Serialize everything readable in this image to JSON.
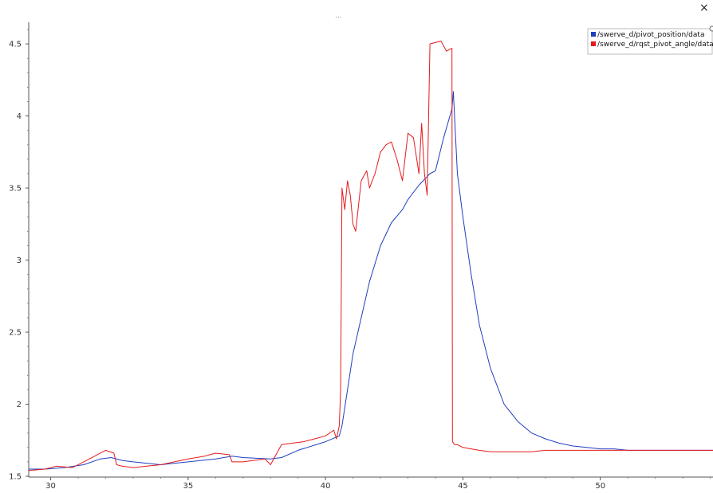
{
  "window": {
    "dots_label": "...",
    "close_glyph": "×"
  },
  "chart_data": {
    "type": "line",
    "title": "",
    "xlabel": "",
    "ylabel": "",
    "xlim": [
      29.2,
      54.1
    ],
    "ylim": [
      1.5,
      4.65
    ],
    "x_ticks": [
      30,
      35,
      40,
      45,
      50
    ],
    "y_ticks": [
      1.5,
      2,
      2.5,
      3,
      3.5,
      4,
      4.5
    ],
    "legend_position": "top-right",
    "grid": false,
    "series": [
      {
        "name": "/swerve_d/pivot_position/data",
        "color": "#1f3fbf",
        "x": [
          29.2,
          29.8,
          30.5,
          31.2,
          31.8,
          32.2,
          32.6,
          33.0,
          34.0,
          35.0,
          36.0,
          36.6,
          37.0,
          38.0,
          38.4,
          39.0,
          40.0,
          40.5,
          40.6,
          40.8,
          41.0,
          41.3,
          41.6,
          42.0,
          42.4,
          42.8,
          43.0,
          43.4,
          43.8,
          44.0,
          44.3,
          44.6,
          44.65,
          44.8,
          45.0,
          45.3,
          45.6,
          46.0,
          46.5,
          47.0,
          47.5,
          48.0,
          48.5,
          49.0,
          49.5,
          50.0,
          50.5,
          51.0,
          52.0,
          53.0,
          54.1
        ],
        "y": [
          1.55,
          1.55,
          1.56,
          1.58,
          1.62,
          1.63,
          1.61,
          1.6,
          1.58,
          1.6,
          1.62,
          1.64,
          1.63,
          1.62,
          1.63,
          1.68,
          1.74,
          1.78,
          1.85,
          2.1,
          2.35,
          2.6,
          2.85,
          3.1,
          3.26,
          3.35,
          3.42,
          3.52,
          3.6,
          3.62,
          3.85,
          4.05,
          4.17,
          3.6,
          3.3,
          2.9,
          2.55,
          2.25,
          2.0,
          1.88,
          1.8,
          1.76,
          1.73,
          1.71,
          1.7,
          1.69,
          1.69,
          1.68,
          1.68,
          1.68,
          1.68
        ]
      },
      {
        "name": "/swerve_d/rqst_pivot_angle/data",
        "color": "#e41a1c",
        "x": [
          29.2,
          29.8,
          30.2,
          30.8,
          31.2,
          31.6,
          32.0,
          32.3,
          32.4,
          32.6,
          33.0,
          33.5,
          34.0,
          34.5,
          35.0,
          35.6,
          36.0,
          36.5,
          36.6,
          37.0,
          37.8,
          38.0,
          38.2,
          38.4,
          38.8,
          39.2,
          39.6,
          40.0,
          40.3,
          40.4,
          40.5,
          40.55,
          40.6,
          40.7,
          40.8,
          40.9,
          41.0,
          41.1,
          41.3,
          41.5,
          41.6,
          41.8,
          42.0,
          42.2,
          42.4,
          42.6,
          42.8,
          43.0,
          43.2,
          43.4,
          43.5,
          43.6,
          43.7,
          43.8,
          44.2,
          44.4,
          44.6,
          44.62,
          44.7,
          44.8,
          45.0,
          45.3,
          45.6,
          46.0,
          46.5,
          47.0,
          47.5,
          48.0,
          48.5,
          49.0,
          50.0,
          51.0,
          52.0,
          53.0,
          54.1
        ],
        "y": [
          1.54,
          1.55,
          1.57,
          1.56,
          1.6,
          1.64,
          1.68,
          1.66,
          1.58,
          1.57,
          1.56,
          1.57,
          1.58,
          1.6,
          1.62,
          1.64,
          1.66,
          1.65,
          1.6,
          1.6,
          1.62,
          1.58,
          1.65,
          1.72,
          1.73,
          1.74,
          1.76,
          1.78,
          1.82,
          1.76,
          1.85,
          2.1,
          3.5,
          3.35,
          3.55,
          3.45,
          3.25,
          3.2,
          3.55,
          3.62,
          3.5,
          3.6,
          3.75,
          3.8,
          3.82,
          3.7,
          3.55,
          3.88,
          3.85,
          3.6,
          3.95,
          3.6,
          3.45,
          4.5,
          4.52,
          4.45,
          4.47,
          1.74,
          1.72,
          1.72,
          1.7,
          1.69,
          1.68,
          1.67,
          1.67,
          1.67,
          1.67,
          1.68,
          1.68,
          1.68,
          1.68,
          1.68,
          1.68,
          1.68,
          1.68
        ]
      }
    ]
  }
}
